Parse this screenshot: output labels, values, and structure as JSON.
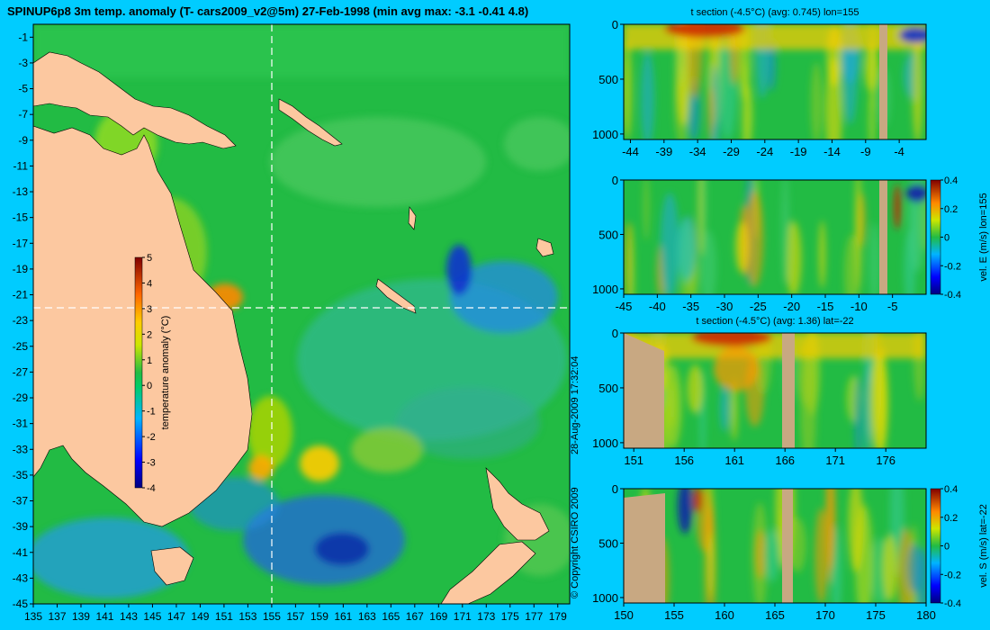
{
  "colors": {
    "background": "#00ccff",
    "land": "#fcc8a0",
    "section_land": "#c8a882",
    "ocean_base": "#22bb44"
  },
  "copyright": "© Copyright CSIRO 2009",
  "timestamp": "28-Aug-2009 17:32:04",
  "chart_data": [
    {
      "type": "heatmap",
      "title": "SPINUP6p8 3m temp. anomaly (T- cars2009_v2@5m) 27-Feb-1998 (min avg max: -3.1 -0.41 4.8)",
      "x_ticks": [
        "135",
        "137",
        "139",
        "141",
        "143",
        "145",
        "147",
        "149",
        "151",
        "153",
        "155",
        "157",
        "159",
        "161",
        "163",
        "165",
        "167",
        "169",
        "171",
        "173",
        "175",
        "177",
        "179"
      ],
      "y_ticks": [
        "-1",
        "-3",
        "-5",
        "-7",
        "-9",
        "-11",
        "-13",
        "-15",
        "-17",
        "-19",
        "-21",
        "-23",
        "-25",
        "-27",
        "-29",
        "-31",
        "-33",
        "-35",
        "-37",
        "-39",
        "-41",
        "-43",
        "-45"
      ],
      "xlim": [
        135,
        180
      ],
      "ylim": [
        -45,
        0
      ],
      "crosshair": {
        "lon": 155,
        "lat": -22
      },
      "colorbar": {
        "label": "temperature anomaly (°C)",
        "ticks": [
          "5",
          "4",
          "3",
          "2",
          "1",
          "0",
          "-1",
          "-2",
          "-3",
          "-4"
        ],
        "range": [
          -4,
          5
        ]
      }
    },
    {
      "type": "heatmap",
      "title": "t section (-4.5°C) (avg: 0.745) lon=155",
      "x_ticks": [
        "-44",
        "-39",
        "-34",
        "-29",
        "-24",
        "-19",
        "-14",
        "-9",
        "-4"
      ],
      "y_ticks": [
        "0",
        "500",
        "1000"
      ]
    },
    {
      "type": "heatmap",
      "title": "",
      "x_ticks": [
        "-45",
        "-40",
        "-35",
        "-30",
        "-25",
        "-20",
        "-15",
        "-10",
        "-5"
      ],
      "y_ticks": [
        "0",
        "500",
        "1000"
      ],
      "colorbar": {
        "label": "vel. E (m/s) lon=155",
        "ticks": [
          "0.4",
          "0.2",
          "0",
          "-0.2",
          "-0.4"
        ],
        "range": [
          -0.4,
          0.4
        ]
      }
    },
    {
      "type": "heatmap",
      "title": "t section (-4.5°C) (avg: 1.36) lat=-22",
      "x_ticks": [
        "151",
        "156",
        "161",
        "166",
        "171",
        "176"
      ],
      "y_ticks": [
        "0",
        "500",
        "1000"
      ]
    },
    {
      "type": "heatmap",
      "title": "",
      "x_ticks": [
        "150",
        "155",
        "160",
        "165",
        "170",
        "175",
        "180"
      ],
      "y_ticks": [
        "0",
        "500",
        "1000"
      ],
      "colorbar": {
        "label": "vel. S (m/s) lat=-22",
        "ticks": [
          "0.4",
          "0.2",
          "0",
          "-0.2",
          "-0.4"
        ],
        "range": [
          -0.4,
          0.4
        ]
      }
    }
  ]
}
